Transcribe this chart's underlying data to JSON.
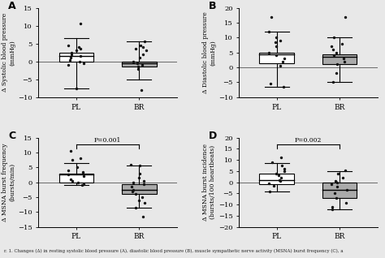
{
  "panels": [
    {
      "label": "A",
      "ylabel": "Δ Systolic blood pressure\n(mmHg)",
      "ylim": [
        -10,
        15
      ],
      "yticks": [
        -10,
        -5,
        0,
        5,
        10,
        15
      ],
      "pl_median": 1.5,
      "pl_q1": 0.0,
      "pl_q3": 2.5,
      "pl_whisker_low": -7.5,
      "pl_whisker_high": 6.5,
      "br_median": -0.5,
      "br_q1": -1.5,
      "br_q3": 0.0,
      "br_whisker_low": -5.0,
      "br_whisker_high": 5.5,
      "pl_dots": [
        10.5,
        4.5,
        4.0,
        3.5,
        3.0,
        2.5,
        2.0,
        1.5,
        1.0,
        0.5,
        0.0,
        -0.5,
        -1.0,
        -7.5
      ],
      "br_dots": [
        5.5,
        4.5,
        4.0,
        3.5,
        3.0,
        2.0,
        1.0,
        0.0,
        -0.5,
        -1.0,
        -1.5,
        -2.0,
        -8.0
      ],
      "p_value": null
    },
    {
      "label": "B",
      "ylabel": "Δ Diastolic blood pressure\n(mmHg)",
      "ylim": [
        -10,
        20
      ],
      "yticks": [
        -10,
        -5,
        0,
        5,
        10,
        15,
        20
      ],
      "pl_median": 4.5,
      "pl_q1": 1.5,
      "pl_q3": 5.0,
      "pl_whisker_low": -6.5,
      "pl_whisker_high": 12.0,
      "br_median": 3.5,
      "br_q1": 1.0,
      "br_q3": 4.5,
      "br_whisker_low": -5.0,
      "br_whisker_high": 10.0,
      "pl_dots": [
        17.0,
        12.0,
        10.0,
        9.0,
        8.5,
        7.0,
        5.0,
        4.0,
        3.0,
        2.0,
        0.5,
        -5.5,
        -6.5
      ],
      "br_dots": [
        17.0,
        10.0,
        8.0,
        7.0,
        6.0,
        5.0,
        4.0,
        3.0,
        2.0,
        1.0,
        -2.0,
        -5.0
      ],
      "p_value": null
    },
    {
      "label": "C",
      "ylabel": "Δ MSNA burst frequency\n(bursts/min)",
      "ylim": [
        -15,
        15
      ],
      "yticks": [
        -15,
        -10,
        -5,
        0,
        5,
        10,
        15
      ],
      "pl_median": 2.5,
      "pl_q1": 0.0,
      "pl_q3": 3.0,
      "pl_whisker_low": -1.0,
      "pl_whisker_high": 6.5,
      "br_median": -2.5,
      "br_q1": -4.0,
      "br_q3": -0.5,
      "br_whisker_low": -8.5,
      "br_whisker_high": 5.5,
      "pl_dots": [
        10.5,
        8.0,
        7.5,
        5.0,
        4.0,
        3.5,
        3.0,
        2.5,
        2.0,
        1.0,
        0.5,
        0.0,
        -0.5,
        -1.0
      ],
      "br_dots": [
        6.0,
        5.5,
        3.0,
        1.5,
        0.5,
        0.0,
        -0.5,
        -1.5,
        -2.5,
        -3.0,
        -4.0,
        -5.0,
        -6.0,
        -7.0,
        -8.5,
        -11.5
      ],
      "p_value": "P=0.001"
    },
    {
      "label": "D",
      "ylabel": "Δ MSNA burst incidence\n(bursts/100 heartbeats)",
      "ylim": [
        -20,
        20
      ],
      "yticks": [
        -20,
        -15,
        -10,
        -5,
        0,
        5,
        10,
        15,
        20
      ],
      "pl_median": 1.0,
      "pl_q1": -1.0,
      "pl_q3": 4.0,
      "pl_whisker_low": -4.0,
      "pl_whisker_high": 8.5,
      "br_median": -3.5,
      "br_q1": -7.0,
      "br_q3": 0.0,
      "br_whisker_low": -12.0,
      "br_whisker_high": 5.0,
      "pl_dots": [
        11.0,
        9.0,
        7.5,
        6.0,
        5.0,
        4.0,
        3.0,
        2.0,
        1.0,
        0.5,
        -0.5,
        -1.5,
        -4.0
      ],
      "br_dots": [
        5.5,
        4.0,
        2.0,
        0.5,
        0.0,
        -1.0,
        -2.0,
        -3.5,
        -5.0,
        -7.0,
        -9.0,
        -11.0,
        -12.0
      ],
      "p_value": "P=0.002"
    }
  ],
  "pl_color": "#ffffff",
  "br_color": "#aaaaaa",
  "edge_color": "#000000",
  "dot_color": "#111111",
  "categories": [
    "PL",
    "BR"
  ],
  "box_width": 0.55,
  "dot_size": 6,
  "caption": "r. 1. Changes (Δ) in resting systolic blood pressure (A), diastolic blood pressure (B), muscle sympathetic nerve activity (MSNA) burst frequency (C), a",
  "bg_color": "#e8e8e8"
}
